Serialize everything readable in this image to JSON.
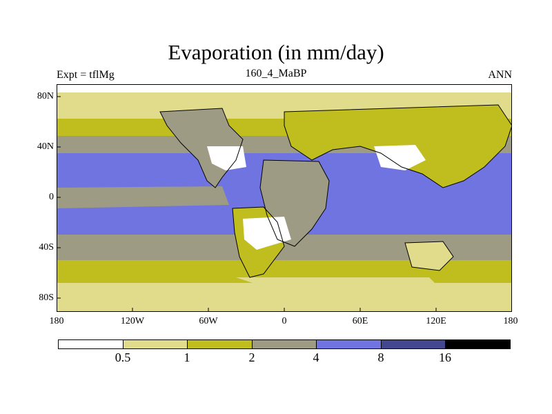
{
  "title": "Evaporation (in mm/day)",
  "subtitle_left": "Expt = tflMg",
  "subtitle_center": "160_4_MaBP",
  "subtitle_right": "ANN",
  "y_ticks": [
    "80N",
    "40N",
    "0",
    "40S",
    "80S"
  ],
  "x_ticks": [
    "180",
    "120W",
    "60W",
    "0",
    "60E",
    "120E",
    "180"
  ],
  "legend": {
    "labels": [
      "0.5",
      "1",
      "2",
      "4",
      "8",
      "16"
    ],
    "colors": [
      "#ffffff",
      "#e1dc8c",
      "#c0bd1e",
      "#9d9b84",
      "#7074e1",
      "#42478f",
      "#000000"
    ]
  },
  "map_fill": {
    "high_lat_low": "#e1dc8c",
    "mid_lat": "#c0bd1e",
    "subtropics": "#9d9b84",
    "tropical_ocean": "#7074e1",
    "desert": "#ffffff"
  }
}
